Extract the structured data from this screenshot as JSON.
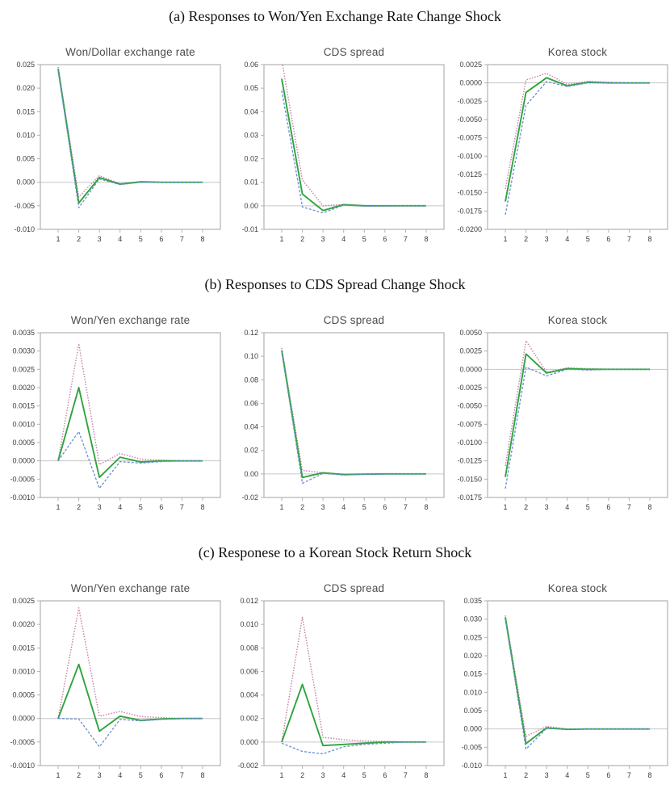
{
  "figure_style": {
    "frame_color": "#b2b2b2",
    "zero_line_color": "#c6c6c6",
    "tick_label_color": "#3c3c3c",
    "chart_title_color": "#4d4d4d",
    "series_styles": {
      "upper_band": {
        "color": "#c77ca7",
        "dash": "1.5 1.8",
        "width": 1.4
      },
      "response": {
        "color": "#2fa43e",
        "dash": "",
        "width": 1.9
      },
      "lower_band": {
        "color": "#6a8ecd",
        "dash": "3 2",
        "width": 1.3
      }
    }
  },
  "sections": [
    {
      "id": "a",
      "title": "(a) Responses to Won/Yen Exchange Rate Change Shock"
    },
    {
      "id": "b",
      "title": "(b) Responses to CDS Spread Change Shock"
    },
    {
      "id": "c",
      "title": "(c) Responese to a Korean Stock Return Shock"
    }
  ],
  "x_labels": [
    "1",
    "2",
    "3",
    "4",
    "5",
    "6",
    "7",
    "8"
  ],
  "chart_data": [
    {
      "type": "line",
      "section": "a",
      "title": "Won/Dollar exchange rate",
      "x": [
        1,
        2,
        3,
        4,
        5,
        6,
        7,
        8
      ],
      "ylim": [
        -0.01,
        0.025
      ],
      "yticks": [
        "0.025",
        "0.020",
        "0.015",
        "0.010",
        "0.005",
        "0.000",
        "-0.005",
        "-0.010"
      ],
      "series": [
        {
          "name": "upper_band",
          "values": [
            0.0245,
            -0.0031,
            0.0014,
            -0.0003,
            0.0001,
            0.0,
            0.0,
            0.0
          ]
        },
        {
          "name": "response",
          "values": [
            0.0241,
            -0.0044,
            0.001,
            -0.0004,
            0.0001,
            0.0,
            0.0,
            0.0
          ]
        },
        {
          "name": "lower_band",
          "values": [
            0.0237,
            -0.0054,
            0.0007,
            -0.0005,
            0.0,
            0.0,
            0.0,
            0.0
          ]
        }
      ]
    },
    {
      "type": "line",
      "section": "a",
      "title": "CDS spread",
      "x": [
        1,
        2,
        3,
        4,
        5,
        6,
        7,
        8
      ],
      "ylim": [
        -0.01,
        0.06
      ],
      "yticks": [
        "0.06",
        "0.05",
        "0.04",
        "0.03",
        "0.02",
        "0.01",
        "0.00",
        "-0.01"
      ],
      "series": [
        {
          "name": "upper_band",
          "values": [
            0.062,
            0.011,
            0.0,
            0.0006,
            0.0001,
            0.0,
            0.0,
            0.0
          ]
        },
        {
          "name": "response",
          "values": [
            0.054,
            0.005,
            -0.002,
            0.0005,
            0.0,
            0.0,
            0.0,
            0.0
          ]
        },
        {
          "name": "lower_band",
          "values": [
            0.049,
            -0.0005,
            -0.003,
            0.0003,
            -0.0002,
            -0.0001,
            0.0,
            0.0
          ]
        }
      ]
    },
    {
      "type": "line",
      "section": "a",
      "title": "Korea stock",
      "x": [
        1,
        2,
        3,
        4,
        5,
        6,
        7,
        8
      ],
      "ylim": [
        -0.02,
        0.0025
      ],
      "yticks": [
        "0.0025",
        "0.0000",
        "-0.0025",
        "-0.0050",
        "-0.0075",
        "-0.0100",
        "-0.0125",
        "-0.0150",
        "-0.0175",
        "-0.0200"
      ],
      "series": [
        {
          "name": "upper_band",
          "values": [
            -0.0145,
            0.0004,
            0.0013,
            -0.0002,
            0.0002,
            0.0001,
            0.0,
            0.0
          ]
        },
        {
          "name": "response",
          "values": [
            -0.0162,
            -0.0013,
            0.0007,
            -0.0004,
            0.0001,
            0.0,
            0.0,
            0.0
          ]
        },
        {
          "name": "lower_band",
          "values": [
            -0.018,
            -0.0031,
            0.0002,
            -0.0005,
            0.0,
            0.0,
            0.0,
            0.0
          ]
        }
      ]
    },
    {
      "type": "line",
      "section": "b",
      "title": "Won/Yen exchange rate",
      "x": [
        1,
        2,
        3,
        4,
        5,
        6,
        7,
        8
      ],
      "ylim": [
        -0.001,
        0.0035
      ],
      "yticks": [
        "0.0035",
        "0.0030",
        "0.0025",
        "0.0020",
        "0.0015",
        "0.0010",
        "0.0005",
        "0.0000",
        "-0.0005",
        "-0.0010"
      ],
      "series": [
        {
          "name": "upper_band",
          "values": [
            0.0,
            0.0032,
            -0.0001,
            0.0002,
            5e-05,
            2e-05,
            0.0,
            0.0
          ]
        },
        {
          "name": "response",
          "values": [
            0.0,
            0.002,
            -0.00045,
            0.0001,
            -3e-05,
            0.0,
            0.0,
            0.0
          ]
        },
        {
          "name": "lower_band",
          "values": [
            0.0,
            0.0008,
            -0.00075,
            -2e-05,
            -6e-05,
            -2e-05,
            0.0,
            0.0
          ]
        }
      ]
    },
    {
      "type": "line",
      "section": "b",
      "title": "CDS spread",
      "x": [
        1,
        2,
        3,
        4,
        5,
        6,
        7,
        8
      ],
      "ylim": [
        -0.02,
        0.12
      ],
      "yticks": [
        "0.12",
        "0.10",
        "0.08",
        "0.06",
        "0.04",
        "0.02",
        "0.00",
        "-0.02"
      ],
      "series": [
        {
          "name": "upper_band",
          "values": [
            0.107,
            0.003,
            0.001,
            -0.0005,
            -0.0002,
            0.0,
            0.0,
            0.0
          ]
        },
        {
          "name": "response",
          "values": [
            0.105,
            -0.003,
            0.001,
            -0.0005,
            -0.0002,
            0.0,
            0.0,
            0.0
          ]
        },
        {
          "name": "lower_band",
          "values": [
            0.104,
            -0.008,
            0.0005,
            -0.001,
            -0.0004,
            -0.0001,
            0.0,
            0.0
          ]
        }
      ]
    },
    {
      "type": "line",
      "section": "b",
      "title": "Korea stock",
      "x": [
        1,
        2,
        3,
        4,
        5,
        6,
        7,
        8
      ],
      "ylim": [
        -0.0175,
        0.005
      ],
      "yticks": [
        "0.0050",
        "0.0025",
        "0.0000",
        "-0.0025",
        "-0.0050",
        "-0.0075",
        "-0.0100",
        "-0.0125",
        "-0.0150",
        "-0.0175"
      ],
      "series": [
        {
          "name": "upper_band",
          "values": [
            -0.0132,
            0.0039,
            -0.0004,
            0.0002,
            0.0001,
            0.0,
            0.0,
            0.0
          ]
        },
        {
          "name": "response",
          "values": [
            -0.0147,
            0.0021,
            -0.0005,
            0.0001,
            0.0,
            0.0,
            0.0,
            0.0
          ]
        },
        {
          "name": "lower_band",
          "values": [
            -0.0163,
            0.0003,
            -0.0009,
            0.0,
            -0.0001,
            0.0,
            0.0,
            0.0
          ]
        }
      ]
    },
    {
      "type": "line",
      "section": "c",
      "title": "Won/Yen exchange rate",
      "x": [
        1,
        2,
        3,
        4,
        5,
        6,
        7,
        8
      ],
      "ylim": [
        -0.001,
        0.0025
      ],
      "yticks": [
        "0.0025",
        "0.0020",
        "0.0015",
        "0.0010",
        "0.0005",
        "0.0000",
        "-0.0005",
        "-0.0010"
      ],
      "series": [
        {
          "name": "upper_band",
          "values": [
            0.0,
            0.00235,
            5e-05,
            0.00015,
            4e-05,
            2e-05,
            0.0,
            0.0
          ]
        },
        {
          "name": "response",
          "values": [
            0.0,
            0.00115,
            -0.00027,
            5e-05,
            -4e-05,
            -1e-05,
            0.0,
            0.0
          ]
        },
        {
          "name": "lower_band",
          "values": [
            0.0,
            -1e-05,
            -0.0006,
            -2e-05,
            -5e-05,
            -2e-05,
            0.0,
            0.0
          ]
        }
      ]
    },
    {
      "type": "line",
      "section": "c",
      "title": "CDS spread",
      "x": [
        1,
        2,
        3,
        4,
        5,
        6,
        7,
        8
      ],
      "ylim": [
        -0.002,
        0.012
      ],
      "yticks": [
        "0.012",
        "0.010",
        "0.008",
        "0.006",
        "0.004",
        "0.002",
        "0.000",
        "-0.002"
      ],
      "series": [
        {
          "name": "upper_band",
          "values": [
            0.0,
            0.0106,
            0.0004,
            0.0002,
            0.0001,
            5e-05,
            0.0,
            0.0
          ]
        },
        {
          "name": "response",
          "values": [
            0.0,
            0.0049,
            -0.0003,
            -0.0002,
            -0.0001,
            0.0,
            0.0,
            0.0
          ]
        },
        {
          "name": "lower_band",
          "values": [
            -0.0001,
            -0.0008,
            -0.001,
            -0.0004,
            -0.0002,
            -0.0001,
            0.0,
            0.0
          ]
        }
      ]
    },
    {
      "type": "line",
      "section": "c",
      "title": "Korea stock",
      "x": [
        1,
        2,
        3,
        4,
        5,
        6,
        7,
        8
      ],
      "ylim": [
        -0.01,
        0.035
      ],
      "yticks": [
        "0.035",
        "0.030",
        "0.025",
        "0.020",
        "0.015",
        "0.010",
        "0.005",
        "0.000",
        "-0.005",
        "-0.010"
      ],
      "series": [
        {
          "name": "upper_band",
          "values": [
            0.031,
            -0.002,
            0.0007,
            0.0,
            0.0,
            0.0,
            0.0,
            0.0
          ]
        },
        {
          "name": "response",
          "values": [
            0.0305,
            -0.004,
            0.0003,
            -0.0001,
            0.0,
            0.0,
            0.0,
            0.0
          ]
        },
        {
          "name": "lower_band",
          "values": [
            0.03,
            -0.0055,
            0.0002,
            -0.0001,
            0.0,
            0.0,
            0.0,
            0.0
          ]
        }
      ]
    }
  ]
}
